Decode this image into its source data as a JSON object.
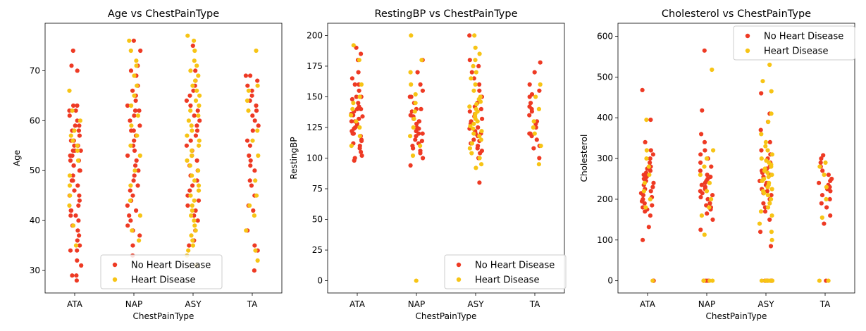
{
  "colors": {
    "no_disease": "#EE3A24",
    "disease": "#F7C415"
  },
  "legend": {
    "no_disease": "No Heart Disease",
    "disease": "Heart Disease"
  },
  "chart_data": [
    {
      "type": "scatter",
      "title": "Age vs ChestPainType",
      "xlabel": "ChestPainType",
      "ylabel": "Age",
      "categories": [
        "ATA",
        "NAP",
        "ASY",
        "TA"
      ],
      "ylim": [
        25.5,
        79.5
      ],
      "yticks": [
        30,
        40,
        50,
        60,
        70
      ],
      "legend_position": "lower-center",
      "series": [
        {
          "name": "No Heart Disease",
          "key": "no_disease",
          "points": {
            "ATA": [
              28,
              29,
              29,
              31,
              32,
              34,
              34,
              35,
              36,
              37,
              38,
              39,
              40,
              41,
              41,
              42,
              42,
              43,
              44,
              45,
              45,
              46,
              47,
              48,
              48,
              49,
              50,
              50,
              51,
              51,
              52,
              52,
              53,
              53,
              54,
              54,
              54,
              55,
              55,
              56,
              56,
              57,
              58,
              58,
              59,
              59,
              60,
              61,
              62,
              62,
              63,
              63,
              70,
              71,
              74
            ],
            "NAP": [
              33,
              35,
              37,
              38,
              39,
              40,
              41,
              42,
              43,
              44,
              44,
              45,
              46,
              47,
              48,
              49,
              50,
              51,
              52,
              53,
              54,
              55,
              56,
              57,
              58,
              58,
              59,
              60,
              61,
              62,
              62,
              63,
              64,
              65,
              66,
              67,
              69,
              70,
              71,
              74,
              76
            ],
            "ASY": [
              35,
              36,
              38,
              40,
              41,
              42,
              43,
              44,
              45,
              46,
              47,
              48,
              49,
              50,
              51,
              52,
              53,
              54,
              55,
              56,
              57,
              58,
              59,
              60,
              61,
              62,
              63,
              64,
              65,
              66,
              67,
              68,
              70,
              75
            ],
            "TA": [
              30,
              34,
              35,
              38,
              42,
              43,
              45,
              47,
              48,
              50,
              51,
              52,
              53,
              55,
              56,
              58,
              59,
              60,
              61,
              62,
              63,
              64,
              65,
              66,
              67,
              68,
              69,
              69
            ]
          }
        },
        {
          "name": "Heart Disease",
          "key": "disease",
          "points": {
            "ATA": [
              35,
              39,
              43,
              45,
              47,
              49,
              52,
              54,
              55,
              56,
              57,
              58,
              60,
              62,
              66
            ],
            "NAP": [
              36,
              38,
              41,
              44,
              47,
              50,
              53,
              55,
              57,
              59,
              61,
              63,
              65,
              67,
              69,
              71,
              72,
              74,
              76
            ],
            "ASY": [
              31,
              33,
              34,
              35,
              36,
              37,
              38,
              39,
              40,
              41,
              42,
              43,
              44,
              45,
              46,
              47,
              48,
              49,
              50,
              51,
              52,
              53,
              54,
              55,
              56,
              57,
              58,
              59,
              60,
              61,
              62,
              63,
              64,
              65,
              66,
              67,
              68,
              69,
              70,
              71,
              72,
              74,
              76,
              77
            ],
            "TA": [
              32,
              34,
              38,
              41,
              43,
              45,
              48,
              53,
              56,
              58,
              62,
              64,
              66,
              67,
              74
            ]
          }
        }
      ]
    },
    {
      "type": "scatter",
      "title": "RestingBP vs ChestPainType",
      "xlabel": "ChestPainType",
      "ylabel": "RestingBP",
      "categories": [
        "ATA",
        "NAP",
        "ASY",
        "TA"
      ],
      "ylim": [
        -10,
        210
      ],
      "yticks": [
        0,
        25,
        50,
        75,
        100,
        125,
        150,
        175,
        200
      ],
      "legend_position": "lower-right",
      "series": [
        {
          "name": "No Heart Disease",
          "key": "no_disease",
          "points": {
            "ATA": [
              98,
              100,
              102,
              105,
              108,
              110,
              112,
              114,
              115,
              118,
              120,
              120,
              122,
              124,
              125,
              126,
              128,
              130,
              130,
              132,
              134,
              135,
              136,
              138,
              140,
              140,
              142,
              145,
              148,
              150,
              150,
              155,
              160,
              160,
              165,
              170,
              180,
              185,
              190
            ],
            "NAP": [
              94,
              100,
              104,
              106,
              108,
              110,
              112,
              114,
              115,
              118,
              120,
              120,
              122,
              124,
              125,
              128,
              130,
              130,
              132,
              134,
              135,
              138,
              140,
              140,
              145,
              150,
              150,
              155,
              160,
              170,
              180
            ],
            "ASY": [
              80,
              100,
              104,
              106,
              108,
              110,
              112,
              114,
              115,
              118,
              120,
              120,
              122,
              124,
              125,
              128,
              130,
              132,
              134,
              136,
              138,
              140,
              142,
              145,
              150,
              155,
              160,
              165,
              170,
              175,
              180,
              200
            ],
            "TA": [
              100,
              108,
              110,
              115,
              118,
              120,
              120,
              125,
              128,
              130,
              135,
              138,
              140,
              142,
              145,
              150,
              152,
              155,
              160,
              170,
              178
            ]
          }
        },
        {
          "name": "Heart Disease",
          "key": "disease",
          "points": {
            "ATA": [
              110,
              118,
              125,
              130,
              135,
              140,
              145,
              150,
              160,
              180,
              192
            ],
            "NAP": [
              0,
              102,
              110,
              118,
              125,
              132,
              138,
              145,
              152,
              160,
              170,
              180,
              200
            ],
            "ASY": [
              92,
              95,
              100,
              104,
              108,
              112,
              115,
              118,
              120,
              122,
              124,
              126,
              128,
              130,
              132,
              134,
              136,
              138,
              140,
              142,
              144,
              146,
              148,
              150,
              155,
              160,
              165,
              170,
              175,
              180,
              185,
              190,
              200
            ],
            "TA": [
              95,
              110,
              120,
              125,
              130,
              140,
              150,
              160
            ]
          }
        }
      ]
    },
    {
      "type": "scatter",
      "title": "Cholesterol vs ChestPainType",
      "xlabel": "ChestPainType",
      "ylabel": "Cholesterol",
      "categories": [
        "ATA",
        "NAP",
        "ASY",
        "TA"
      ],
      "ylim": [
        -30,
        632
      ],
      "yticks": [
        0,
        100,
        200,
        300,
        400,
        500,
        600
      ],
      "legend_position": "upper-right",
      "series": [
        {
          "name": "No Heart Disease",
          "key": "no_disease",
          "points": {
            "ATA": [
              0,
              0,
              100,
              132,
              160,
              170,
              175,
              180,
              185,
              190,
              195,
              200,
              205,
              210,
              215,
              220,
              225,
              230,
              235,
              240,
              245,
              250,
              255,
              260,
              265,
              270,
              275,
              280,
              290,
              300,
              310,
              320,
              340,
              395,
              468
            ],
            "NAP": [
              0,
              0,
              0,
              125,
              150,
              165,
              175,
              180,
              185,
              190,
              200,
              205,
              210,
              215,
              220,
              225,
              230,
              235,
              240,
              245,
              250,
              255,
              260,
              270,
              280,
              290,
              300,
              310,
              320,
              340,
              360,
              418,
              565
            ],
            "ASY": [
              0,
              0,
              0,
              0,
              85,
              120,
              150,
              170,
              180,
              190,
              200,
              210,
              215,
              220,
              225,
              230,
              235,
              240,
              245,
              250,
              255,
              260,
              265,
              270,
              275,
              280,
              290,
              300,
              310,
              320,
              340,
              370,
              390,
              410,
              460
            ],
            "TA": [
              0,
              140,
              160,
              180,
              190,
              200,
              210,
              220,
              225,
              230,
              235,
              240,
              245,
              250,
              260,
              270,
              280,
              290,
              300,
              308
            ]
          }
        },
        {
          "name": "Heart Disease",
          "key": "disease",
          "points": {
            "ATA": [
              0,
              180,
              200,
              220,
              240,
              260,
              280,
              300,
              320,
              395
            ],
            "NAP": [
              0,
              0,
              0,
              0,
              113,
              160,
              180,
              200,
              220,
              240,
              260,
              280,
              300,
              320,
              518
            ],
            "ASY": [
              0,
              0,
              0,
              0,
              0,
              0,
              100,
              120,
              140,
              160,
              170,
              180,
              190,
              200,
              210,
              215,
              220,
              225,
              230,
              235,
              240,
              245,
              250,
              255,
              260,
              265,
              270,
              275,
              280,
              285,
              290,
              295,
              300,
              310,
              320,
              330,
              340,
              360,
              390,
              410,
              465,
              490,
              530
            ],
            "TA": [
              0,
              0,
              155,
              200,
              230,
              260,
              280,
              290
            ]
          }
        }
      ]
    }
  ]
}
